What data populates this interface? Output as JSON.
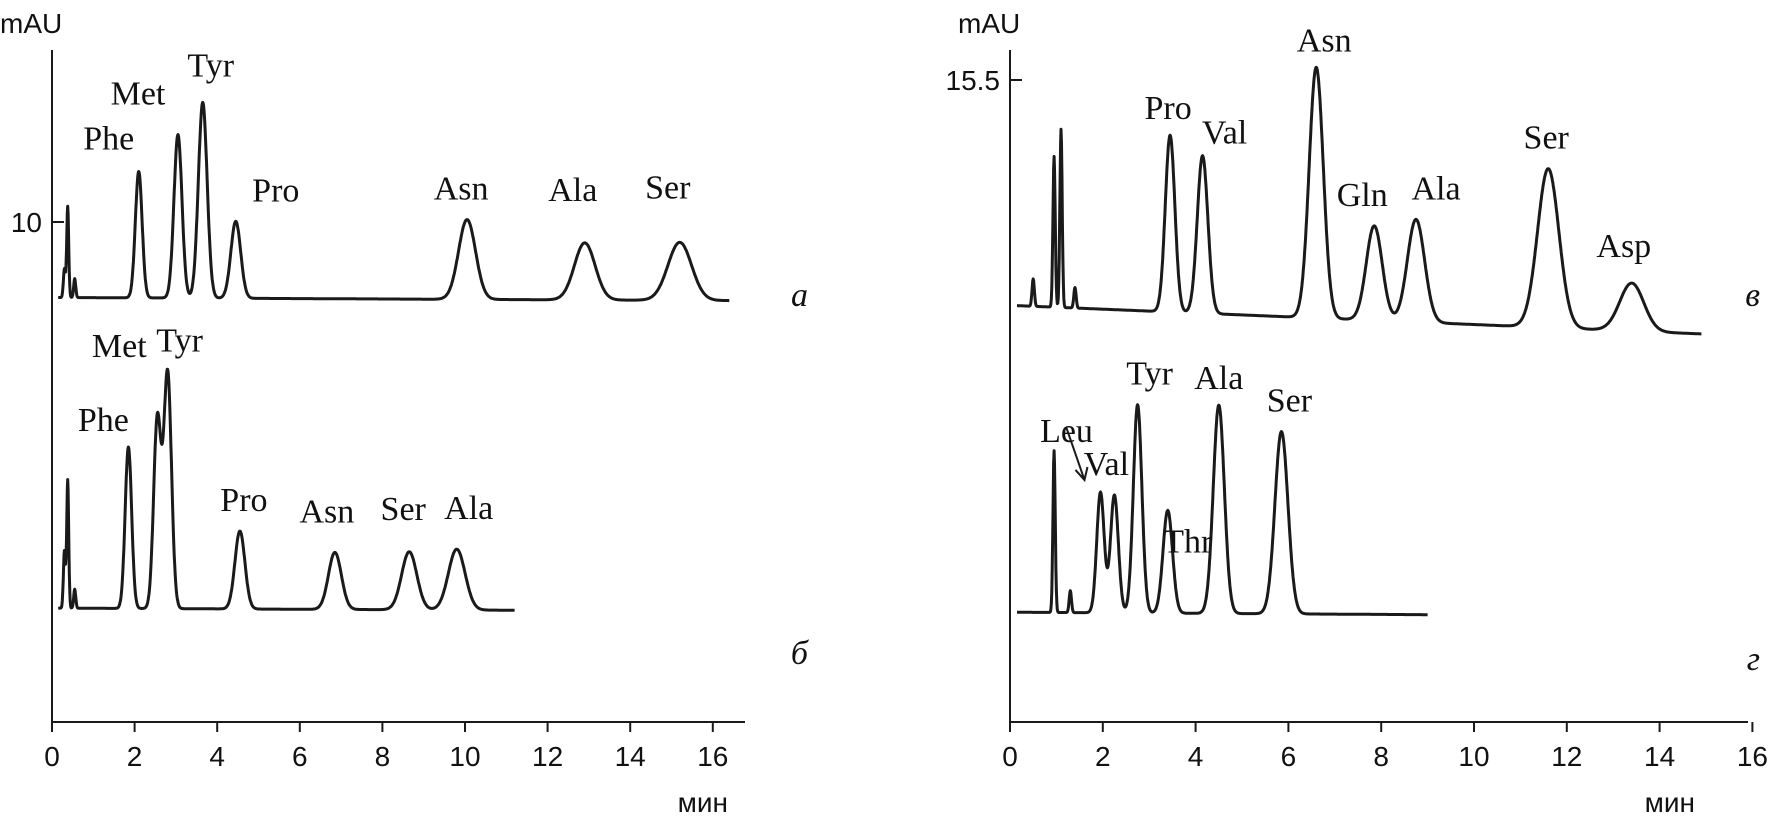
{
  "chart_data": [
    {
      "type": "line",
      "panel": "left",
      "ylabel": "mAU",
      "xlabel": "мин",
      "xlim": [
        0,
        16.8
      ],
      "x_ticks": [
        0,
        2,
        4,
        6,
        8,
        10,
        12,
        14,
        16
      ],
      "y_tick": {
        "value": 10,
        "label": "10"
      },
      "traces": [
        {
          "name": "а",
          "baseline": 0.9,
          "end_x": 16.4,
          "spikes": [
            {
              "x": 0.3,
              "h": 3.0
            },
            {
              "x": 0.38,
              "h": 9.6
            },
            {
              "x": 0.55,
              "h": 2.0
            }
          ],
          "peaks": [
            {
              "label": "Phe",
              "x": 2.1,
              "h": 13.3
            },
            {
              "label": "Met",
              "x": 3.05,
              "h": 17.2
            },
            {
              "label": "Tyr",
              "x": 3.65,
              "h": 20.6
            },
            {
              "label": "Pro",
              "x": 4.45,
              "h": 8.1
            },
            {
              "label": "Asn",
              "x": 10.05,
              "h": 8.4
            },
            {
              "label": "Ala",
              "x": 12.9,
              "h": 6.0
            },
            {
              "label": "Ser",
              "x": 15.2,
              "h": 6.1
            }
          ]
        },
        {
          "name": "б",
          "baseline": -31.8,
          "end_x": 11.2,
          "spikes": [
            {
              "x": 0.3,
              "h": 6.0
            },
            {
              "x": 0.38,
              "h": 13.5
            },
            {
              "x": 0.55,
              "h": 2.0
            }
          ],
          "peaks": [
            {
              "label": "Phe",
              "x": 1.85,
              "h": 17.0
            },
            {
              "label": "Met",
              "x": 2.55,
              "h": 19.9
            },
            {
              "label": "Tyr",
              "x": 2.8,
              "h": 24.8
            },
            {
              "label": "Pro",
              "x": 4.55,
              "h": 8.2
            },
            {
              "label": "Asn",
              "x": 6.85,
              "h": 6.0
            },
            {
              "label": "Ser",
              "x": 8.65,
              "h": 6.1
            },
            {
              "label": "Ala",
              "x": 9.8,
              "h": 6.4
            }
          ]
        }
      ]
    },
    {
      "type": "line",
      "panel": "right",
      "ylabel": "mAU",
      "xlabel": "мин",
      "xlim": [
        0,
        15.8
      ],
      "x_ticks": [
        0,
        2,
        4,
        6,
        8,
        10,
        12,
        14,
        16
      ],
      "y_tick": {
        "value": 15.5,
        "label": "15.5"
      },
      "traces": [
        {
          "name": "в",
          "baseline": 1.8,
          "end_x": 14.9,
          "spikes": [
            {
              "x": 0.5,
              "h": 2.0
            },
            {
              "x": 0.95,
              "h": 11.0
            },
            {
              "x": 1.1,
              "h": 13.0
            },
            {
              "x": 1.4,
              "h": 1.5
            }
          ],
          "peaks": [
            {
              "label": "Pro",
              "x": 3.45,
              "h": 12.9
            },
            {
              "label": "Val",
              "x": 4.15,
              "h": 11.5
            },
            {
              "label": "Asn",
              "x": 6.6,
              "h": 18.3
            },
            {
              "label": "Gln",
              "x": 7.85,
              "h": 6.9
            },
            {
              "label": "Ala",
              "x": 8.75,
              "h": 7.5
            },
            {
              "label": "Ser",
              "x": 11.6,
              "h": 11.6
            },
            {
              "label": "Asp",
              "x": 13.4,
              "h": 3.5
            }
          ]
        },
        {
          "name": "г",
          "baseline": -20.6,
          "end_x": 9.0,
          "spikes": [
            {
              "x": 0.95,
              "h": 11.8
            },
            {
              "x": 1.3,
              "h": 1.6
            }
          ],
          "peaks": [
            {
              "label": "Leu",
              "x": 1.95,
              "h": 8.8
            },
            {
              "label": "Val",
              "x": 2.25,
              "h": 8.6
            },
            {
              "label": "Tyr",
              "x": 2.75,
              "h": 15.2
            },
            {
              "label": "Thr",
              "x": 3.4,
              "h": 7.5
            },
            {
              "label": "Ala",
              "x": 4.5,
              "h": 15.2
            },
            {
              "label": "Ser",
              "x": 5.85,
              "h": 13.3
            }
          ]
        }
      ]
    }
  ]
}
